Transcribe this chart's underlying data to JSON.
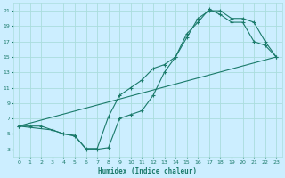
{
  "title": "",
  "xlabel": "Humidex (Indice chaleur)",
  "bg_color": "#cceeff",
  "grid_color": "#aadddd",
  "line_color": "#1a7a6a",
  "xlim": [
    -0.5,
    23.5
  ],
  "ylim": [
    2,
    22
  ],
  "xticks": [
    0,
    1,
    2,
    3,
    4,
    5,
    6,
    7,
    8,
    9,
    10,
    11,
    12,
    13,
    14,
    15,
    16,
    17,
    18,
    19,
    20,
    21,
    22,
    23
  ],
  "yticks": [
    3,
    5,
    7,
    9,
    11,
    13,
    15,
    17,
    19,
    21
  ],
  "line1_x": [
    0,
    1,
    2,
    3,
    4,
    5,
    6,
    7,
    8,
    9,
    10,
    11,
    12,
    13,
    14,
    15,
    16,
    17,
    18,
    19,
    20,
    21,
    22,
    23
  ],
  "line1_y": [
    6,
    6,
    6,
    5.5,
    5,
    4.8,
    3,
    3,
    3.2,
    7,
    7.5,
    8,
    10,
    13,
    15,
    17.5,
    20,
    21,
    21,
    20,
    20,
    19.5,
    17,
    15
  ],
  "line2_x": [
    0,
    3,
    4,
    5,
    6,
    7,
    8,
    9,
    10,
    11,
    12,
    13,
    14,
    15,
    16,
    17,
    18,
    19,
    20,
    21,
    22,
    23
  ],
  "line2_y": [
    6,
    5.5,
    5,
    4.7,
    3.1,
    3.1,
    7.2,
    10,
    11,
    12,
    13.5,
    14,
    15,
    18,
    19.5,
    21.2,
    20.5,
    19.5,
    19.5,
    17,
    16.5,
    15
  ],
  "line3_x": [
    0,
    23
  ],
  "line3_y": [
    6,
    15
  ]
}
